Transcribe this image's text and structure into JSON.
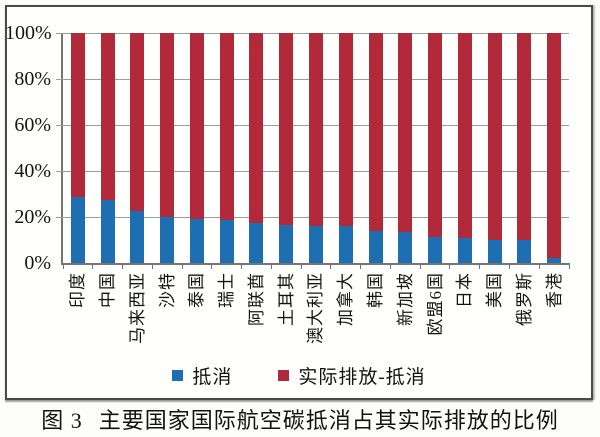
{
  "chart_data": {
    "type": "bar",
    "stacked_percent": true,
    "title": "",
    "xlabel": "",
    "ylabel": "",
    "categories": [
      "印度",
      "中国",
      "马来西亚",
      "沙特",
      "泰国",
      "瑞士",
      "阿联酋",
      "土耳其",
      "澳大利亚",
      "加拿大",
      "韩国",
      "新加坡",
      "欧盟6国",
      "日本",
      "美国",
      "俄罗斯",
      "香港"
    ],
    "series": [
      {
        "name": "抵消",
        "color": "#1E6FB2",
        "values": [
          28.5,
          27.5,
          22.5,
          20,
          19,
          18.5,
          17.5,
          16.5,
          16,
          16,
          14,
          13.5,
          11.5,
          11,
          10,
          10,
          2
        ]
      },
      {
        "name": "实际排放-抵消",
        "color": "#B2293A",
        "values": [
          71.5,
          72.5,
          77.5,
          80,
          81,
          81.5,
          82.5,
          83.5,
          84,
          84,
          86,
          86.5,
          88.5,
          89,
          90,
          90,
          98
        ]
      }
    ],
    "yticks": [
      "0%",
      "20%",
      "40%",
      "60%",
      "80%",
      "100%"
    ],
    "ylim": [
      0,
      100
    ],
    "grid": true,
    "gridline_color": "#9c9c9c",
    "legend_position": "bottom-center",
    "x_label_rotation": -90
  },
  "caption": {
    "figure_label": "图 3",
    "title": "主要国家国际航空碳抵消占其实际排放的比例"
  }
}
